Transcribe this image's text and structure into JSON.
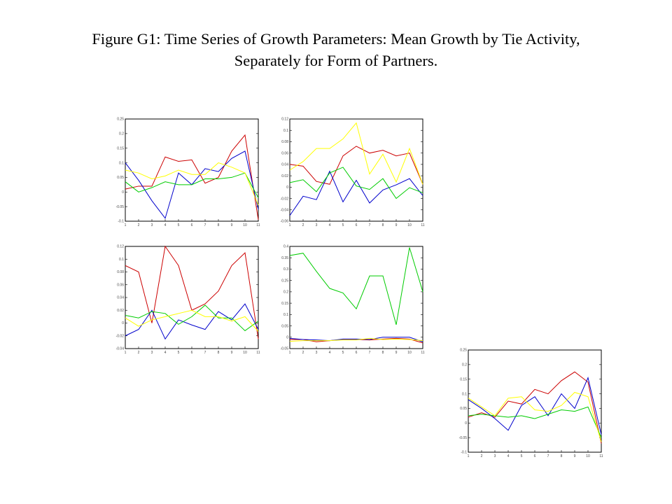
{
  "title": {
    "line1": "Figure G1: Time Series of Growth Parameters: Mean Growth by Tie Activity,",
    "line2": "Separately for Form of Partners."
  },
  "colors": {
    "red": "#cc0000",
    "blue": "#0000cc",
    "green": "#00cc00",
    "yellow": "#ffff00"
  },
  "chart_data": [
    {
      "type": "line",
      "x": [
        1,
        2,
        3,
        4,
        5,
        6,
        7,
        8,
        9,
        10,
        11
      ],
      "ylim": [
        -0.1,
        0.25
      ],
      "yticks": [
        -0.1,
        -0.05,
        0,
        0.05,
        0.1,
        0.15,
        0.2,
        0.25
      ],
      "ytick_labels": [
        "-0.1",
        "-0.05",
        "0",
        "0.05",
        "0.1",
        "0.15",
        "0.2",
        "0.25"
      ],
      "series": [
        {
          "color": "red",
          "values": [
            0.01,
            0.02,
            0.02,
            0.12,
            0.105,
            0.11,
            0.03,
            0.05,
            0.14,
            0.195,
            -0.095
          ]
        },
        {
          "color": "blue",
          "values": [
            0.1,
            0.04,
            -0.03,
            -0.09,
            0.065,
            0.025,
            0.08,
            0.07,
            0.115,
            0.14,
            -0.06
          ]
        },
        {
          "color": "green",
          "values": [
            0.035,
            0.0,
            0.015,
            0.035,
            0.025,
            0.025,
            0.045,
            0.045,
            0.05,
            0.065,
            -0.02
          ]
        },
        {
          "color": "yellow",
          "values": [
            0.075,
            0.065,
            0.045,
            0.055,
            0.075,
            0.06,
            0.06,
            0.1,
            0.085,
            0.065,
            -0.045
          ]
        }
      ]
    },
    {
      "type": "line",
      "x": [
        1,
        2,
        3,
        4,
        5,
        6,
        7,
        8,
        9,
        10,
        11
      ],
      "ylim": [
        -0.06,
        0.12
      ],
      "yticks": [
        -0.06,
        -0.04,
        -0.02,
        0,
        0.02,
        0.04,
        0.06,
        0.08,
        0.1,
        0.12
      ],
      "ytick_labels": [
        "-0.06",
        "-0.04",
        "-0.02",
        "0",
        "0.02",
        "0.04",
        "0.06",
        "0.08",
        "0.1",
        "0.12"
      ],
      "series": [
        {
          "color": "red",
          "values": [
            0.04,
            0.037,
            0.01,
            0.005,
            0.055,
            0.072,
            0.06,
            0.065,
            0.055,
            0.06,
            0.005
          ]
        },
        {
          "color": "blue",
          "values": [
            -0.05,
            -0.016,
            -0.022,
            0.028,
            -0.026,
            0.012,
            -0.028,
            -0.005,
            0.004,
            0.015,
            -0.015
          ]
        },
        {
          "color": "green",
          "values": [
            0.008,
            0.013,
            -0.008,
            0.025,
            0.035,
            0.002,
            -0.004,
            0.015,
            -0.02,
            -0.001,
            -0.01
          ]
        },
        {
          "color": "yellow",
          "values": [
            0.03,
            0.045,
            0.068,
            0.068,
            0.085,
            0.113,
            0.023,
            0.058,
            0.009,
            0.068,
            0.005
          ]
        }
      ]
    },
    {
      "type": "line",
      "x": [
        1,
        2,
        3,
        4,
        5,
        6,
        7,
        8,
        9,
        10,
        11
      ],
      "ylim": [
        -0.04,
        0.12
      ],
      "yticks": [
        -0.04,
        -0.02,
        0,
        0.02,
        0.04,
        0.06,
        0.08,
        0.1,
        0.12
      ],
      "ytick_labels": [
        "-0.04",
        "-0.02",
        "0",
        "0.02",
        "0.04",
        "0.06",
        "0.08",
        "0.1",
        "0.12"
      ],
      "series": [
        {
          "color": "red",
          "values": [
            0.09,
            0.08,
            0.0,
            0.12,
            0.09,
            0.02,
            0.03,
            0.05,
            0.09,
            0.11,
            -0.025
          ]
        },
        {
          "color": "blue",
          "values": [
            -0.02,
            -0.01,
            0.02,
            -0.025,
            0.005,
            -0.003,
            -0.01,
            0.018,
            0.005,
            0.03,
            -0.01
          ]
        },
        {
          "color": "green",
          "values": [
            0.012,
            0.008,
            0.018,
            0.015,
            -0.002,
            0.01,
            0.028,
            0.008,
            0.008,
            -0.012,
            0.003
          ]
        },
        {
          "color": "yellow",
          "values": [
            0.008,
            -0.005,
            0.005,
            0.01,
            0.015,
            0.02,
            0.01,
            0.01,
            0.003,
            0.01,
            -0.013
          ]
        }
      ]
    },
    {
      "type": "line",
      "x": [
        1,
        2,
        3,
        4,
        5,
        6,
        7,
        8,
        9,
        10,
        11
      ],
      "ylim": [
        -0.05,
        0.4
      ],
      "yticks": [
        -0.05,
        0,
        0.05,
        0.1,
        0.15,
        0.2,
        0.25,
        0.3,
        0.35,
        0.4
      ],
      "ytick_labels": [
        "-0.05",
        "0",
        "0.05",
        "0.1",
        "0.15",
        "0.2",
        "0.25",
        "0.3",
        "0.35",
        "0.4"
      ],
      "series": [
        {
          "color": "green",
          "values": [
            0.36,
            0.37,
            0.29,
            0.215,
            0.195,
            0.125,
            0.27,
            0.27,
            0.055,
            0.395,
            0.2
          ]
        },
        {
          "color": "red",
          "values": [
            -0.01,
            -0.01,
            -0.02,
            -0.015,
            -0.01,
            -0.01,
            -0.012,
            -0.008,
            -0.005,
            -0.008,
            -0.025
          ]
        },
        {
          "color": "blue",
          "values": [
            -0.005,
            -0.01,
            -0.012,
            -0.015,
            -0.008,
            -0.008,
            -0.01,
            0.0,
            0.0,
            0.0,
            -0.02
          ]
        },
        {
          "color": "yellow",
          "values": [
            -0.018,
            -0.015,
            -0.015,
            -0.015,
            -0.012,
            -0.012,
            -0.005,
            -0.01,
            -0.008,
            -0.01,
            -0.015
          ]
        }
      ]
    },
    {
      "type": "line",
      "x": [
        1,
        2,
        3,
        4,
        5,
        6,
        7,
        8,
        9,
        10,
        11
      ],
      "ylim": [
        -0.1,
        0.25
      ],
      "yticks": [
        -0.1,
        -0.05,
        0,
        0.05,
        0.1,
        0.15,
        0.2,
        0.25
      ],
      "ytick_labels": [
        "-0.1",
        "-0.05",
        "0",
        "0.05",
        "0.1",
        "0.15",
        "0.2",
        "0.25"
      ],
      "series": [
        {
          "color": "red",
          "values": [
            0.02,
            0.035,
            0.02,
            0.075,
            0.065,
            0.115,
            0.1,
            0.145,
            0.175,
            0.14,
            -0.07
          ]
        },
        {
          "color": "blue",
          "values": [
            0.08,
            0.05,
            0.015,
            -0.025,
            0.06,
            0.09,
            0.025,
            0.1,
            0.05,
            0.155,
            -0.04
          ]
        },
        {
          "color": "green",
          "values": [
            0.025,
            0.03,
            0.025,
            0.02,
            0.025,
            0.015,
            0.03,
            0.045,
            0.04,
            0.055,
            -0.05
          ]
        },
        {
          "color": "yellow",
          "values": [
            0.085,
            0.055,
            0.025,
            0.085,
            0.09,
            0.045,
            0.04,
            0.06,
            0.105,
            0.09,
            -0.065
          ]
        }
      ]
    }
  ]
}
